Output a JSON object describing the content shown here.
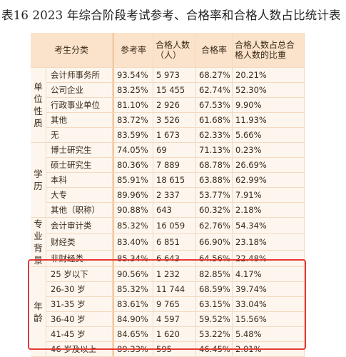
{
  "title": "表16 2023 年综合阶段考试参考、合格率和合格人数占比统计表",
  "headers": {
    "category": "考生分类",
    "participation": "参考率",
    "passers": "合格人数（人）",
    "pass_rate": "合格率",
    "share": "合格人数占总合格人数的比重"
  },
  "groups": [
    {
      "name": "单位性质",
      "rows": [
        {
          "label": "会计师事务所",
          "participation": "93.54%",
          "passers": "5 973",
          "pass_rate": "68.27%",
          "share": "20.21%"
        },
        {
          "label": "公司企业",
          "participation": "83.25%",
          "passers": "15 455",
          "pass_rate": "62.74%",
          "share": "52.30%"
        },
        {
          "label": "行政事业单位",
          "participation": "81.10%",
          "passers": "2 926",
          "pass_rate": "67.53%",
          "share": "9.90%"
        },
        {
          "label": "其他",
          "participation": "83.72%",
          "passers": "3 526",
          "pass_rate": "61.68%",
          "share": "11.93%"
        },
        {
          "label": "无",
          "participation": "83.59%",
          "passers": "1 673",
          "pass_rate": "62.33%",
          "share": "5.66%"
        }
      ]
    },
    {
      "name": "学历",
      "rows": [
        {
          "label": "博士研究生",
          "participation": "74.05%",
          "passers": "69",
          "pass_rate": "71.13%",
          "share": "0.23%"
        },
        {
          "label": "硕士研究生",
          "participation": "80.36%",
          "passers": "7 889",
          "pass_rate": "68.78%",
          "share": "26.69%"
        },
        {
          "label": "本科",
          "participation": "85.91%",
          "passers": "18 615",
          "pass_rate": "63.88%",
          "share": "62.99%"
        },
        {
          "label": "大专",
          "participation": "89.96%",
          "passers": "2 337",
          "pass_rate": "53.77%",
          "share": "7.91%"
        },
        {
          "label": "其他（职称）",
          "participation": "90.88%",
          "passers": "643",
          "pass_rate": "60.32%",
          "share": "2.18%"
        }
      ]
    },
    {
      "name": "专业背景",
      "rows": [
        {
          "label": "会计审计类",
          "participation": "85.32%",
          "passers": "16 059",
          "pass_rate": "62.76%",
          "share": "54.34%"
        },
        {
          "label": "财经类",
          "participation": "83.40%",
          "passers": "6 851",
          "pass_rate": "66.90%",
          "share": "23.18%"
        },
        {
          "label": "非财经类",
          "participation": "85.34%",
          "passers": "6 643",
          "pass_rate": "64.56%",
          "share": "22.48%"
        }
      ]
    },
    {
      "name": "年龄",
      "rows": [
        {
          "label": "25 岁以下",
          "participation": "90.56%",
          "passers": "1 232",
          "pass_rate": "82.85%",
          "share": "4.17%"
        },
        {
          "label": "26-30 岁",
          "participation": "85.32%",
          "passers": "11 744",
          "pass_rate": "68.59%",
          "share": "39.74%"
        },
        {
          "label": "31-35 岁",
          "participation": "83.61%",
          "passers": "9 765",
          "pass_rate": "63.15%",
          "share": "33.04%"
        },
        {
          "label": "36-40 岁",
          "participation": "84.90%",
          "passers": "4 597",
          "pass_rate": "59.52%",
          "share": "15.56%"
        },
        {
          "label": "41-45 岁",
          "participation": "84.65%",
          "passers": "1 620",
          "pass_rate": "53.22%",
          "share": "5.48%"
        },
        {
          "label": "46 岁及以上",
          "participation": "89.33%",
          "passers": "595",
          "pass_rate": "46.45%",
          "share": "2.01%"
        }
      ]
    }
  ],
  "colors": {
    "header_bg": "#fbe3cb",
    "cell_bg": "#fdf6ee",
    "separator": "#f6c89a",
    "highlight": "#e53935"
  }
}
